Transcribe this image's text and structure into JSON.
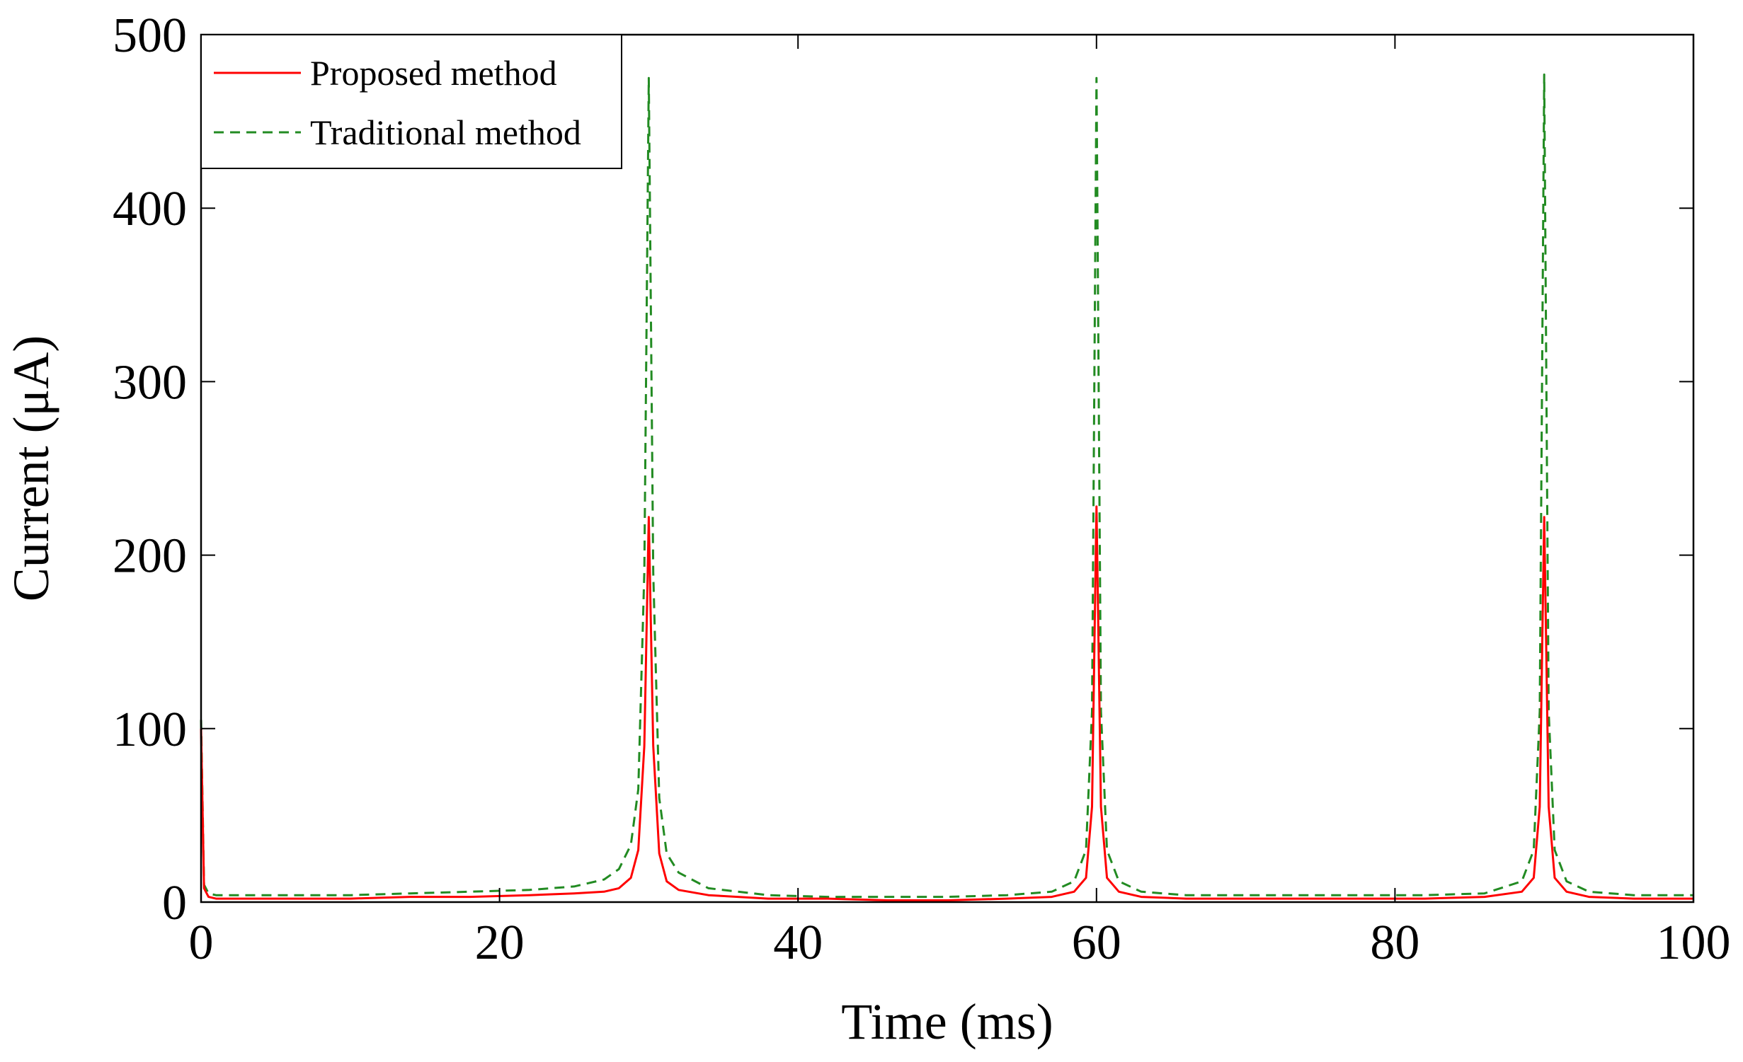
{
  "chart_data": {
    "type": "line",
    "title": "",
    "xlabel": "Time (ms)",
    "ylabel": "Current (μA)",
    "xlim": [
      0,
      100
    ],
    "ylim": [
      0,
      500
    ],
    "xticks": [
      0,
      20,
      40,
      60,
      80,
      100
    ],
    "yticks": [
      0,
      100,
      200,
      300,
      400,
      500
    ],
    "xtick_labels": [
      "0",
      "20",
      "40",
      "60",
      "80",
      "100"
    ],
    "ytick_labels": [
      "0",
      "100",
      "200",
      "300",
      "400",
      "500"
    ],
    "grid": false,
    "legend_position": "top-left",
    "series": [
      {
        "name": "Proposed method",
        "color": "#ff0000",
        "style": "solid",
        "x": [
          0,
          0.2,
          0.5,
          1,
          3,
          6,
          10,
          14,
          18,
          22,
          25,
          27,
          28,
          28.8,
          29.3,
          29.7,
          30,
          30.3,
          30.7,
          31.2,
          32,
          34,
          38,
          42,
          46,
          50,
          54,
          57,
          58.5,
          59.3,
          59.7,
          60,
          60.3,
          60.7,
          61.5,
          63,
          66,
          70,
          74,
          78,
          82,
          86,
          88.5,
          89.3,
          89.7,
          90,
          90.3,
          90.7,
          91.5,
          93,
          96,
          100
        ],
        "y": [
          100,
          8,
          3,
          2,
          2,
          2,
          2,
          3,
          3,
          4,
          5,
          6,
          8,
          14,
          30,
          90,
          222,
          90,
          28,
          12,
          7,
          4,
          2,
          2,
          1,
          1,
          2,
          3,
          6,
          14,
          55,
          228,
          55,
          14,
          6,
          3,
          2,
          2,
          2,
          2,
          2,
          3,
          6,
          14,
          55,
          222,
          55,
          14,
          6,
          3,
          2,
          2
        ]
      },
      {
        "name": "Traditional method",
        "color": "#228b22",
        "style": "dashed",
        "x": [
          0,
          0.2,
          0.5,
          1,
          3,
          6,
          10,
          14,
          18,
          22,
          25,
          27,
          28,
          28.8,
          29.3,
          29.7,
          30,
          30.3,
          30.7,
          31.2,
          32,
          34,
          38,
          42,
          46,
          50,
          54,
          57,
          58.5,
          59.3,
          59.7,
          60,
          60.3,
          60.7,
          61.5,
          63,
          66,
          70,
          74,
          78,
          82,
          86,
          88.5,
          89.3,
          89.7,
          90,
          90.3,
          90.7,
          91.5,
          93,
          96,
          100
        ],
        "y": [
          105,
          10,
          5,
          4,
          4,
          4,
          4,
          5,
          6,
          7,
          9,
          13,
          19,
          33,
          65,
          190,
          475,
          190,
          60,
          28,
          17,
          8,
          4,
          3,
          3,
          3,
          4,
          6,
          12,
          30,
          110,
          475,
          110,
          30,
          12,
          6,
          4,
          4,
          4,
          4,
          4,
          5,
          12,
          30,
          110,
          477,
          110,
          30,
          12,
          6,
          4,
          4
        ]
      }
    ]
  }
}
